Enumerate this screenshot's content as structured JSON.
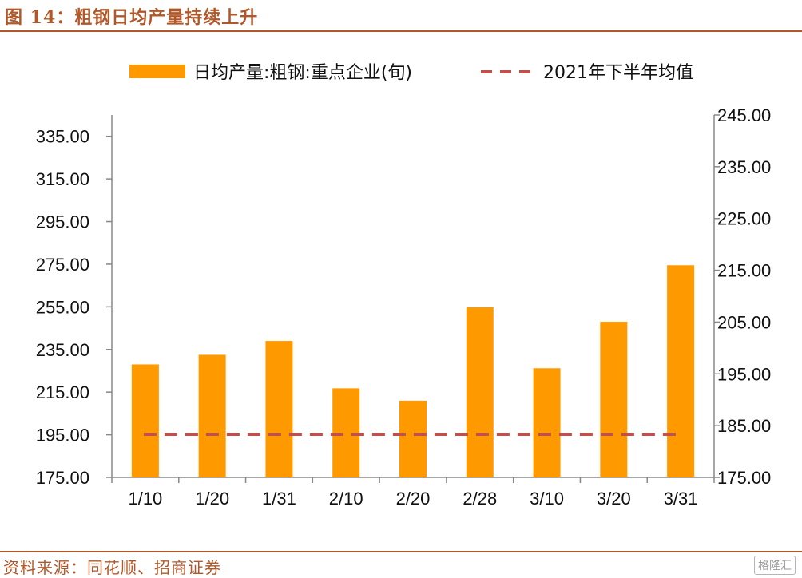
{
  "header": {
    "title": "图 14：粗钢日均产量持续上升"
  },
  "footer": {
    "source": "资料来源：同花顺、招商证券",
    "watermark": "格隆汇"
  },
  "chart_data": {
    "type": "bar",
    "categories": [
      "1/10",
      "1/20",
      "1/31",
      "2/10",
      "2/20",
      "2/28",
      "3/10",
      "3/20",
      "3/31"
    ],
    "series": [
      {
        "name": "日均产量:粗钢:重点企业(旬)",
        "type": "bar",
        "axis": "left",
        "color": "#FF9900",
        "values": [
          228.0,
          232.5,
          239.0,
          216.8,
          211.0,
          254.8,
          226.2,
          248.0,
          274.5
        ]
      },
      {
        "name": "2021年下半年均值",
        "type": "line",
        "style": "dashed",
        "axis": "left",
        "color": "#C0504D",
        "values": [
          195.2,
          195.2,
          195.2,
          195.2,
          195.2,
          195.2,
          195.2,
          195.2,
          195.2
        ]
      }
    ],
    "y_left": {
      "min": 175,
      "max": 345,
      "ticks": [
        "175.00",
        "195.00",
        "215.00",
        "235.00",
        "255.00",
        "275.00",
        "295.00",
        "315.00",
        "335.00"
      ]
    },
    "y_right": {
      "min": 175,
      "max": 245,
      "ticks": [
        "175.00",
        "185.00",
        "195.00",
        "205.00",
        "215.00",
        "225.00",
        "235.00",
        "245.00"
      ]
    },
    "legend": "top",
    "grid": false
  }
}
